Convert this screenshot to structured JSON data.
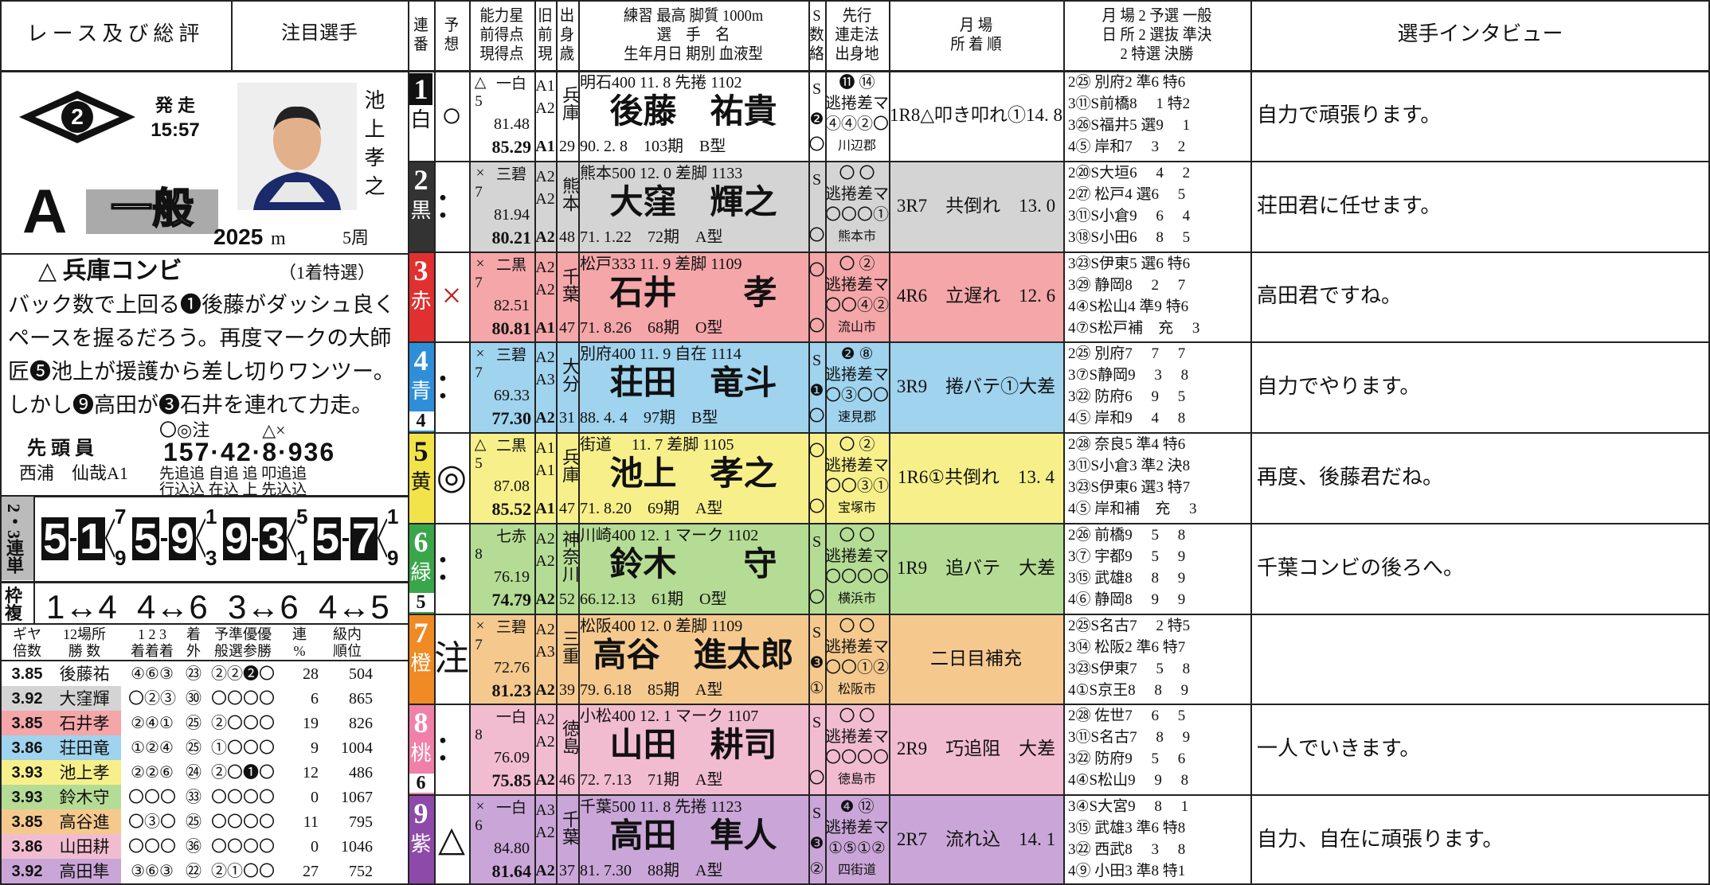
{
  "header": {
    "left": [
      "レース及び総評",
      "注目選手"
    ],
    "columns": [
      [
        "連",
        "番"
      ],
      [
        "予",
        "想"
      ],
      [
        "能力星",
        "前得点",
        "現得点"
      ],
      [
        "旧",
        "前",
        "現"
      ],
      [
        "出",
        "身",
        "歳"
      ],
      [
        "練習 最高 脚質 1000m",
        "選　手　名",
        "生年月日 期別 血液型"
      ],
      [
        "S",
        "数",
        "絡"
      ],
      [
        "先行",
        "連走法",
        "出身地"
      ],
      [
        "月 場",
        "所 着 順"
      ],
      [
        "月 場 2 予選 一般",
        "日 所 2 選抜 準決",
        "2 特選 決勝"
      ],
      [
        "選手インタビュー"
      ]
    ]
  },
  "race": {
    "number": "2",
    "start_label": "発 走",
    "start_time": "15:57",
    "class_letter": "A",
    "class_name": "一般",
    "featured_name": "池上孝之",
    "distance": "2025",
    "distance_unit": "m",
    "laps": "5周",
    "pick_title": "△ 兵庫コンビ",
    "pick_note": "（1着特選）",
    "comment": [
      "バック数で上回る❶後藤がダッシュ良く",
      "ペースを握るだろう。再度マークの大師",
      "匠❺池上が援護から差し切りワンツー。",
      "しかし❾高田が❸石井を連れて力走。"
    ],
    "leader_label": "先 頭 員",
    "leader_name": "西浦　仙哉A1",
    "line_marks": "〇◎注　　　△×",
    "line_numbers": "157·42·8·936",
    "line_styles": [
      "先追追 自追 追 叩追追",
      "行込込 在込 上 先込込"
    ]
  },
  "trifecta": {
    "label": "2・3連単",
    "combos": [
      {
        "first": "5",
        "second": "1",
        "third": [
          "7",
          "9"
        ]
      },
      {
        "first": "5",
        "second": "9",
        "third": [
          "1",
          "3"
        ]
      },
      {
        "first": "9",
        "second": "3",
        "third": [
          "5",
          "1"
        ]
      },
      {
        "first": "5",
        "second": "7",
        "third": [
          "1",
          "9"
        ]
      }
    ]
  },
  "quinella": {
    "label": "枠複",
    "combos": [
      "1↔4",
      "4↔6",
      "3↔6",
      "4↔5"
    ]
  },
  "stats": {
    "header": [
      [
        "ギヤ",
        "倍数"
      ],
      [
        "12場所",
        "勝 数"
      ],
      [
        "1 2 3",
        "着着着"
      ],
      [
        "着",
        "外"
      ],
      [
        "予準優優",
        "般選参勝"
      ],
      [
        "連",
        "%"
      ],
      [
        "級内",
        "順位"
      ]
    ],
    "rows": [
      [
        "3.85",
        "後藤祐",
        "④⑥③",
        "㉓",
        "②②❷〇",
        "28",
        "504"
      ],
      [
        "3.92",
        "大窪輝",
        "〇②③",
        "㉚",
        "〇〇〇〇",
        "6",
        "865"
      ],
      [
        "3.85",
        "石井孝",
        "②④①",
        "㉕",
        "②〇〇〇",
        "19",
        "826"
      ],
      [
        "3.86",
        "荘田竜",
        "①②④",
        "㉕",
        "①〇〇〇",
        "9",
        "1004"
      ],
      [
        "3.93",
        "池上孝",
        "②②⑥",
        "㉔",
        "②〇❶〇",
        "12",
        "486"
      ],
      [
        "3.93",
        "鈴木守",
        "〇〇〇",
        "㉝",
        "〇〇〇〇",
        "0",
        "1067"
      ],
      [
        "3.85",
        "高谷進",
        "〇③〇",
        "㉕",
        "〇〇〇〇",
        "11",
        "795"
      ],
      [
        "3.86",
        "山田耕",
        "〇〇〇",
        "㊱",
        "〇〇〇〇",
        "0",
        "1046"
      ],
      [
        "3.92",
        "高田隼",
        "③⑥③",
        "㉒",
        "②①〇〇",
        "27",
        "752"
      ]
    ]
  },
  "riders": [
    {
      "number": "1",
      "color_name": "白",
      "mark": "○",
      "star_mark": "△",
      "star": "一白",
      "star_rank": "5",
      "prev_points": "81.48",
      "cur_points": "85.29",
      "class": [
        "A1",
        "A2",
        "A1"
      ],
      "pref": "兵庫",
      "age": "29",
      "practice": "明石400 11. 8 先捲 1102",
      "name": "後藤　祐貴",
      "profile": "90. 2. 8　103期　B型",
      "s_col": [
        "S",
        "❷",
        "〇"
      ],
      "senko": [
        "⓫ ⑭",
        "逃捲差マ",
        "④④②〇",
        "川辺郡"
      ],
      "recent": "1R8△叩き叩れ①14. 8",
      "past": [
        "2㉕ 別府2 準6 特6",
        "3⑪S前橋8　 1 特2",
        "3㉖S福井5 選9　 1",
        "4⑤ 岸和7　 3　 2"
      ],
      "interview": "自力で頑張ります。"
    },
    {
      "number": "2",
      "color_name": "黒",
      "mark": "：",
      "star_mark": "×",
      "star": "三碧",
      "star_rank": "7",
      "prev_points": "81.94",
      "cur_points": "80.21",
      "class": [
        "A2",
        "A2",
        "A2"
      ],
      "pref": "熊本",
      "age": "48",
      "practice": "熊本500 12. 0 差脚 1133",
      "name": "大窪　輝之",
      "profile": "71. 1.22　72期　A型",
      "s_col": [
        "S",
        "〇"
      ],
      "senko": [
        "〇 〇",
        "逃捲差マ",
        "〇〇〇①",
        "熊本市"
      ],
      "recent": "3R7　共倒れ　13. 0",
      "past": [
        "2⑳S大垣6　 4　 2",
        "2㉗ 松戸4 選6　 5",
        "3⑪S小倉9　 6　 4",
        "3⑱S小田6　 8　 5"
      ],
      "interview": "荘田君に任せます。"
    },
    {
      "number": "3",
      "color_name": "赤",
      "mark": "×",
      "star_mark": "×",
      "star": "二黒",
      "star_rank": "7",
      "prev_points": "82.51",
      "cur_points": "80.81",
      "class": [
        "A2",
        "A2",
        "A1"
      ],
      "pref": "千葉",
      "age": "47",
      "practice": "松戸333 11. 9 差脚 1109",
      "name": "石井　　孝",
      "profile": "71. 8.26　68期　O型",
      "s_col": [
        "〇",
        "〇"
      ],
      "senko": [
        "〇 ②",
        "逃捲差マ",
        "〇〇④②",
        "流山市"
      ],
      "recent": "4R6　立遅れ　12. 6",
      "past": [
        "3㉓S伊東5 選6 特6",
        "3㉙ 静岡8　 2　 7",
        "4④S松山4 準9 特6",
        "4⑦S松戸補　充　 3"
      ],
      "interview": "高田君ですね。"
    },
    {
      "number": "4",
      "color_name": "青",
      "mark": "：",
      "star_mark": "×",
      "star": "三碧",
      "star_rank": "7",
      "prev_points": "69.33",
      "cur_points": "77.30",
      "class": [
        "A2",
        "A3",
        "A2"
      ],
      "pref": "大分",
      "age": "31",
      "practice": "別府400 11. 9 自在 1114",
      "name": "荘田　竜斗",
      "profile": "88. 4. 4　97期　B型",
      "s_col": [
        "S",
        "❶",
        "〇"
      ],
      "senko": [
        "❷ ⑧",
        "逃捲差マ",
        "〇③〇〇",
        "速見郡"
      ],
      "recent": "3R9　捲バテ①大差",
      "past": [
        "2㉕ 別府7　 7　 7",
        "3⑦S静岡9　 3　 8",
        "3㉒ 防府6　 9　 5",
        "4⑤ 岸和9　 4　 8"
      ],
      "interview": "自力でやります。",
      "frame": "4"
    },
    {
      "number": "5",
      "color_name": "黄",
      "mark": "◎",
      "star_mark": "△",
      "star": "二黒",
      "star_rank": "5",
      "prev_points": "87.08",
      "cur_points": "85.52",
      "class": [
        "A1",
        "A1",
        "A1"
      ],
      "pref": "兵庫",
      "age": "47",
      "practice": "街道　 11. 7 差脚 1105",
      "name": "池上　孝之",
      "profile": "71. 8.20　69期　A型",
      "s_col": [
        "〇",
        "〇"
      ],
      "senko": [
        "〇 ②",
        "逃捲差マ",
        "〇〇③①",
        "宝塚市"
      ],
      "recent": "1R6①共倒れ　13. 4",
      "past": [
        "2㉘ 奈良5 準4 特6",
        "3⑪S小倉3 準2 決8",
        "3㉓S伊東6 選3 特7",
        "4⑤ 岸和補　充　 3"
      ],
      "interview": "再度、後藤君だね。"
    },
    {
      "number": "6",
      "color_name": "緑",
      "mark": "：",
      "star": "七赤",
      "star_rank": "8",
      "prev_points": "76.19",
      "cur_points": "74.79",
      "class": [
        "A2",
        "A2",
        "A2"
      ],
      "pref": "神奈川",
      "age": "52",
      "practice": "川崎400 12. 1 マーク 1102",
      "name": "鈴木　　守",
      "profile": "66.12.13　61期　O型",
      "s_col": [
        "S",
        "〇"
      ],
      "senko": [
        "〇 〇",
        "逃捲差マ",
        "〇〇〇〇",
        "横浜市"
      ],
      "recent": "1R9　追バテ　大差",
      "past": [
        "2㉖ 前橋9　 5　 8",
        "3⑦ 宇都9　 5　 9",
        "3⑮ 武雄8　 8　 9",
        "4⑥ 静岡8　 9　 9"
      ],
      "interview": "千葉コンビの後ろへ。",
      "frame": "5"
    },
    {
      "number": "7",
      "color_name": "橙",
      "mark": "注",
      "star_mark": "×",
      "star": "三碧",
      "star_rank": "7",
      "prev_points": "72.76",
      "cur_points": "81.23",
      "class": [
        "A2",
        "A3",
        "A2"
      ],
      "pref": "三重",
      "age": "39",
      "practice": "松阪400 12. 0 差脚 1109",
      "name": "高谷　進太郎",
      "profile": "79. 6.18　85期　A型",
      "s_col": [
        "S",
        "❸",
        "①"
      ],
      "senko": [
        "〇 〇",
        "逃捲差マ",
        "〇〇①②",
        "松阪市"
      ],
      "recent": "二日目補充",
      "past": [
        "2㉕S名古7　 2 特5",
        "3⑭ 松阪2 準6 特7",
        "3㉓S伊東7　 5　 8",
        "4①S京王8　 8　 9"
      ]
    },
    {
      "number": "8",
      "color_name": "桃",
      "mark": "：",
      "star": "一白",
      "star_rank": "8",
      "prev_points": "76.09",
      "cur_points": "75.85",
      "class": [
        "A2",
        "A2",
        "A2"
      ],
      "pref": "徳島",
      "age": "46",
      "practice": "小松400 12. 1 マーク 1107",
      "name": "山田　耕司",
      "profile": "72. 7.13　71期　A型",
      "s_col": [
        "S",
        "〇"
      ],
      "senko": [
        "〇 〇",
        "逃捲差マ",
        "〇〇〇〇",
        "徳島市"
      ],
      "recent": "2R9　巧追阻　大差",
      "past": [
        "2㉘ 佐世7　 6　 5",
        "3⑪S名古7　 8　 9",
        "3㉒ 防府9　 5　 6",
        "4④S松山9　 9　 8"
      ],
      "interview": "一人でいきます。",
      "frame": "6"
    },
    {
      "number": "9",
      "color_name": "紫",
      "mark": "△",
      "star_mark": "×",
      "star": "一白",
      "star_rank": "6",
      "prev_points": "84.80",
      "cur_points": "81.64",
      "class": [
        "A3",
        "A2",
        "A2"
      ],
      "pref": "千葉",
      "age": "37",
      "practice": "千葉500 11. 8 先捲 1123",
      "name": "高田　隼人",
      "profile": "81. 7.30　88期　A型",
      "s_col": [
        "S",
        "❸",
        "②"
      ],
      "senko": [
        "❹ ⑫",
        "逃捲差マ",
        "①⑤①②",
        "四街道"
      ],
      "recent": "2R7　流れ込　14. 1",
      "past": [
        "3④S大宮9　 8　 1",
        "3⑮ 武雄3 準6 特8",
        "3㉒ 西武8　 3　 8",
        "4⑨ 小田3 準8 特1"
      ],
      "interview": "自力、自在に頑張ります。"
    }
  ]
}
